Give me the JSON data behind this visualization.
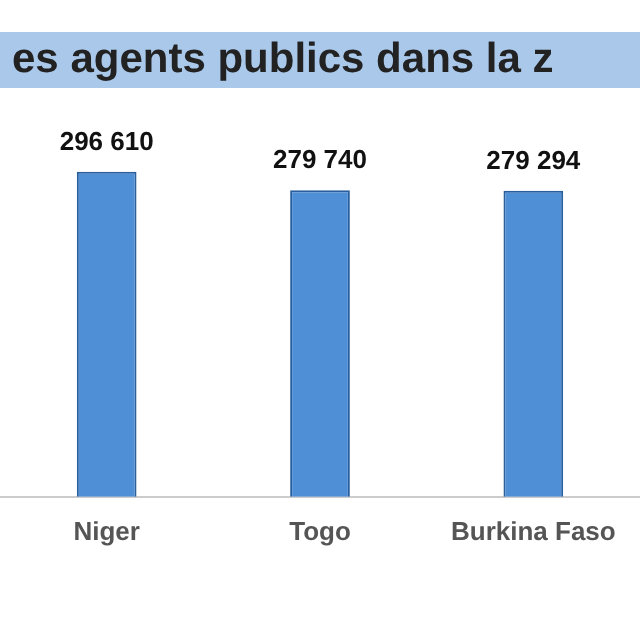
{
  "chart_data": {
    "type": "bar",
    "title": "es agents publics dans la z",
    "categories": [
      "Niger",
      "Togo",
      "Burkina Faso"
    ],
    "values": [
      296610,
      279740,
      279294
    ],
    "color": "#4f8fd6",
    "value_labels": [
      "296 610",
      "279 740",
      "279 294"
    ],
    "grid": false,
    "legend": false
  }
}
